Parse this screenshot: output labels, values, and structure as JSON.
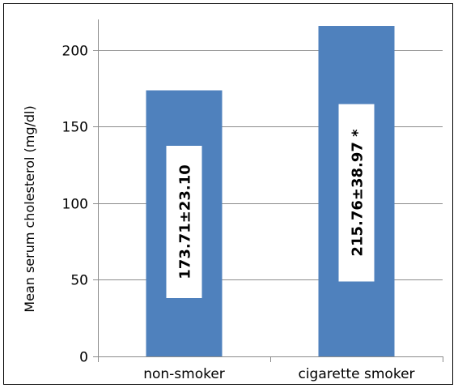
{
  "chart_data": {
    "type": "bar",
    "categories": [
      "non-smoker",
      "cigarette smoker"
    ],
    "values": [
      173.71,
      215.76
    ],
    "data_labels": [
      "173.71±23.10",
      "215.76±38.97 *"
    ],
    "title": "",
    "xlabel": "",
    "ylabel": "Mean serum cholesterol (mg/dl)",
    "ylim": [
      0,
      220
    ],
    "yticks": [
      "0",
      "50",
      "100",
      "150",
      "200"
    ],
    "ytick_values": [
      0,
      50,
      100,
      150,
      200
    ],
    "grid": true,
    "legend": "none",
    "colors": {
      "bar": "#4f81bd",
      "grid": "#8c8c8c",
      "axis": "#8c8c8c",
      "label_box": "#ffffff"
    }
  }
}
